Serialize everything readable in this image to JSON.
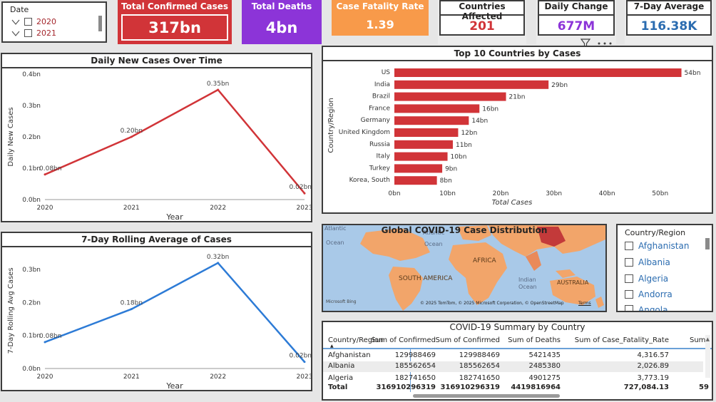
{
  "date_slicer": {
    "title": "Date",
    "items": [
      "2020",
      "2021"
    ]
  },
  "kpis": {
    "total_confirmed": {
      "label": "Total Confirmed Cases",
      "value": "317bn"
    },
    "total_deaths": {
      "label": "Total Deaths",
      "value": "4bn"
    },
    "cfr": {
      "label": "Case Fatality Rate",
      "value": "1.39"
    },
    "countries": {
      "label": "Countries Affected",
      "value": "201",
      "color": "#d13438"
    },
    "daily_change": {
      "label": "Daily Change",
      "value": "677M",
      "color": "#8c34d8"
    },
    "avg7": {
      "label": "7-Day Average",
      "value": "116.38K",
      "color": "#2b6cb0"
    }
  },
  "chart_data": [
    {
      "type": "line",
      "title": "Daily New Cases Over Time",
      "xlabel": "Year",
      "ylabel": "Daily New Cases",
      "x": [
        "2020",
        "2021",
        "2022",
        "2023"
      ],
      "values": [
        0.08,
        0.2,
        0.35,
        0.02
      ],
      "labels": [
        "0.08bn",
        "0.20bn",
        "0.35bn",
        "0.02bn"
      ],
      "yticks": [
        "0.0bn",
        "0.1bn",
        "0.2bn",
        "0.3bn",
        "0.4bn"
      ],
      "ylim": [
        0,
        0.4
      ],
      "color": "#d13438"
    },
    {
      "type": "line",
      "title": "7-Day Rolling Average of Cases",
      "xlabel": "Year",
      "ylabel": "7-Day Rolling Avg Cases",
      "x": [
        "2020",
        "2021",
        "2022",
        "2023"
      ],
      "values": [
        0.08,
        0.18,
        0.32,
        0.02
      ],
      "labels": [
        "0.08bn",
        "0.18bn",
        "0.32bn",
        "0.02bn"
      ],
      "yticks": [
        "0.0bn",
        "0.1bn",
        "0.2bn",
        "0.3bn"
      ],
      "ylim": [
        0,
        0.35
      ],
      "color": "#2d7bd6"
    },
    {
      "type": "bar",
      "orientation": "horizontal",
      "title": "Top 10 Countries by Cases",
      "xlabel": "Total Cases",
      "ylabel": "Country/Region",
      "categories": [
        "US",
        "India",
        "Brazil",
        "France",
        "Germany",
        "United Kingdom",
        "Russia",
        "Italy",
        "Turkey",
        "Korea, South"
      ],
      "values": [
        54,
        29,
        21,
        16,
        14,
        12,
        11,
        10,
        9,
        8
      ],
      "labels": [
        "54bn",
        "29bn",
        "21bn",
        "16bn",
        "14bn",
        "12bn",
        "11bn",
        "10bn",
        "9bn",
        "8bn"
      ],
      "xticks": [
        "0bn",
        "10bn",
        "20bn",
        "30bn",
        "40bn",
        "50bn"
      ],
      "xlim": [
        0,
        55
      ],
      "color": "#d13438"
    }
  ],
  "map": {
    "title": "Global COVID-19 Case Distribution",
    "labels": {
      "atlantic1": "Atlantic",
      "ocean1": "Ocean",
      "atlantic2": "Atlantic",
      "ocean2": "Ocean",
      "africa": "AFRICA",
      "south_america": "SOUTH AMERICA",
      "indian": "Indian",
      "ocean3": "Ocean",
      "australia": "AUSTRALIA"
    },
    "attribution": "© 2025 TomTom, © 2025 Microsoft Corporation, © OpenStreetMap",
    "terms": "Terms",
    "logo": "Microsoft Bing"
  },
  "country_slicer": {
    "title": "Country/Region",
    "items": [
      "Afghanistan",
      "Albania",
      "Algeria",
      "Andorra",
      "Angola"
    ]
  },
  "table": {
    "title": "COVID-19 Summary by Country",
    "columns": [
      "Country/Region",
      "Sum of Confirmed",
      "Sum of Confirmed",
      "Sum of Deaths",
      "Sum of Case_Fatality_Rate",
      "Sum"
    ],
    "rows": [
      [
        "Afghanistan",
        "129988469",
        "129988469",
        "5421435",
        "4,316.57",
        ""
      ],
      [
        "Albania",
        "185562654",
        "185562654",
        "2485380",
        "2,026.89",
        ""
      ],
      [
        "Algeria",
        "182741650",
        "182741650",
        "4901275",
        "3,773.19",
        ""
      ]
    ],
    "total": [
      "Total",
      "316910296319",
      "316910296319",
      "4419816964",
      "727,084.13",
      "59"
    ]
  }
}
